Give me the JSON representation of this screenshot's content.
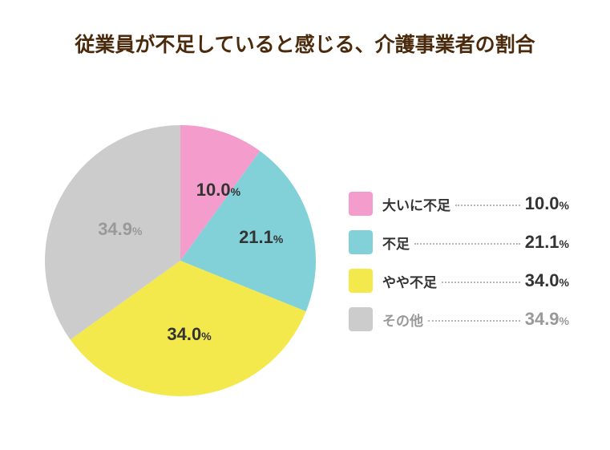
{
  "chart_data": {
    "type": "pie",
    "title": "従業員が不足していると感じる、介護事業者の割合",
    "unit": "%",
    "start": "top",
    "direction": "clockwise",
    "slices": [
      {
        "label": "大いに不足",
        "value": 10.0,
        "display": "10.0",
        "color": "#f49ccb",
        "text_color": "#333333"
      },
      {
        "label": "不足",
        "value": 21.1,
        "display": "21.1",
        "color": "#82d1d8",
        "text_color": "#333333"
      },
      {
        "label": "やや不足",
        "value": 34.0,
        "display": "34.0",
        "color": "#f3e94c",
        "text_color": "#333333"
      },
      {
        "label": "その他",
        "value": 34.9,
        "display": "34.9",
        "color": "#cccccc",
        "text_color": "#999999"
      }
    ],
    "legend": "right"
  }
}
